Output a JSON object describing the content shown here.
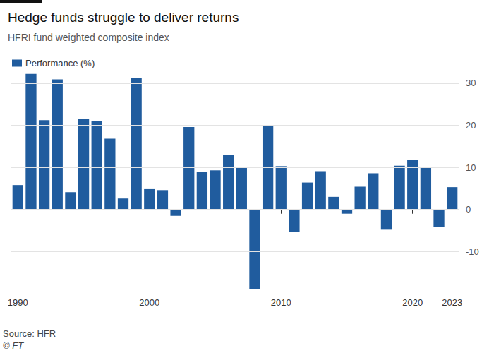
{
  "chart_data": {
    "type": "bar",
    "title": "Hedge funds struggle to deliver returns",
    "subtitle": "HFRI fund weighted composite index",
    "source": "Source: HFR",
    "credit": "© FT",
    "categories": [
      "1990",
      null,
      null,
      null,
      null,
      null,
      null,
      null,
      null,
      null,
      "2000",
      null,
      null,
      null,
      null,
      null,
      null,
      null,
      null,
      null,
      "2010",
      null,
      null,
      null,
      null,
      null,
      null,
      null,
      null,
      null,
      "2020",
      null,
      null,
      "2023"
    ],
    "series": [
      {
        "name": "Performance (%)",
        "color": "#205c9e",
        "values": [
          5.8,
          32.2,
          21.2,
          30.9,
          4.1,
          21.5,
          21.1,
          16.8,
          2.6,
          31.3,
          5.0,
          4.6,
          -1.5,
          19.6,
          9.0,
          9.3,
          12.9,
          10.0,
          -19.0,
          20.0,
          10.3,
          -5.3,
          6.4,
          9.1,
          3.0,
          -1.0,
          5.4,
          8.6,
          -4.8,
          10.4,
          11.8,
          10.2,
          -4.2,
          5.3
        ]
      }
    ],
    "ylim": [
      -19,
      33
    ],
    "yticks": [
      -10,
      0,
      10,
      20,
      30
    ],
    "grid": true,
    "legend": "top-left"
  }
}
